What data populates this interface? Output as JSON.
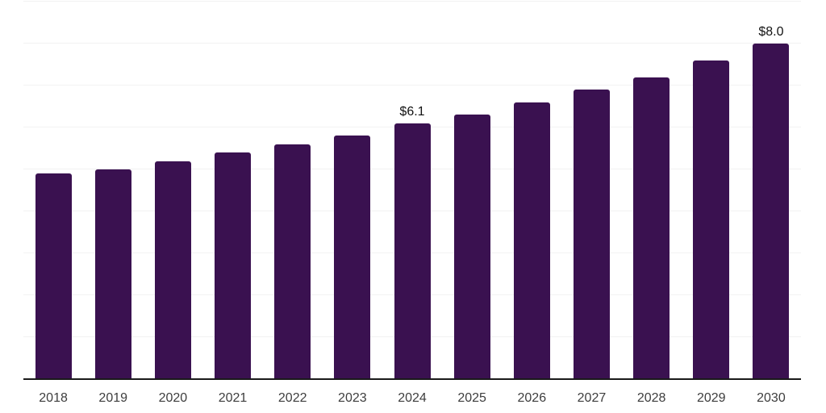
{
  "chart_data": {
    "type": "bar",
    "title": "",
    "xlabel": "",
    "ylabel": "",
    "categories": [
      "2018",
      "2019",
      "2020",
      "2021",
      "2022",
      "2023",
      "2024",
      "2025",
      "2026",
      "2027",
      "2028",
      "2029",
      "2030"
    ],
    "values": [
      4.9,
      5.0,
      5.2,
      5.4,
      5.6,
      5.8,
      6.1,
      6.3,
      6.6,
      6.9,
      7.2,
      7.6,
      8.0
    ],
    "data_labels": [
      "",
      "",
      "",
      "",
      "",
      "",
      "$6.1",
      "",
      "",
      "",
      "",
      "",
      "$8.0"
    ],
    "ylim": [
      0,
      9
    ],
    "gridline_step": 1,
    "grid": "horizontal",
    "legend": "none",
    "y_axis_tick_labels": "none",
    "colors": {
      "bar": "#3A1150",
      "background": "#FFFFFF",
      "gridline": "#F2F2F2",
      "axis_line": "#1A1A1A",
      "tick_label": "#3D3D3D",
      "value_label": "#111111"
    }
  }
}
